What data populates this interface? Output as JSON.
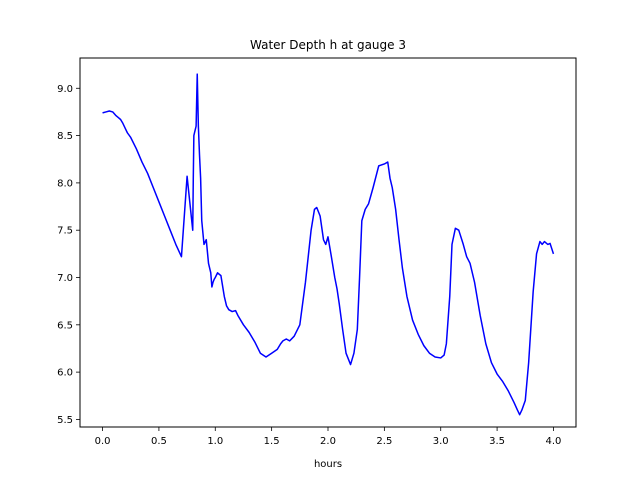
{
  "chart_data": {
    "type": "line",
    "title": "Water Depth h at gauge 3",
    "xlabel": "hours",
    "ylabel": "",
    "xlim": [
      -0.2,
      4.2
    ],
    "ylim": [
      5.42,
      9.32
    ],
    "xticks": [
      0.0,
      0.5,
      1.0,
      1.5,
      2.0,
      2.5,
      3.0,
      3.5,
      4.0
    ],
    "xtick_labels": [
      "0.0",
      "0.5",
      "1.0",
      "1.5",
      "2.0",
      "2.5",
      "3.0",
      "3.5",
      "4.0"
    ],
    "yticks": [
      5.5,
      6.0,
      6.5,
      7.0,
      7.5,
      8.0,
      8.5,
      9.0
    ],
    "ytick_labels": [
      "5.5",
      "6.0",
      "6.5",
      "7.0",
      "7.5",
      "8.0",
      "8.5",
      "9.0"
    ],
    "grid": false,
    "series": [
      {
        "color": "#0000ff",
        "x": [
          0.0,
          0.03,
          0.06,
          0.09,
          0.12,
          0.14,
          0.16,
          0.18,
          0.2,
          0.22,
          0.25,
          0.3,
          0.35,
          0.4,
          0.45,
          0.5,
          0.55,
          0.6,
          0.65,
          0.7,
          0.75,
          0.8,
          0.805,
          0.81,
          0.82,
          0.83,
          0.84,
          0.85,
          0.86,
          0.87,
          0.88,
          0.9,
          0.92,
          0.94,
          0.95,
          0.96,
          0.97,
          0.98,
          0.99,
          1.0,
          1.02,
          1.05,
          1.08,
          1.1,
          1.12,
          1.15,
          1.18,
          1.2,
          1.25,
          1.3,
          1.35,
          1.4,
          1.45,
          1.5,
          1.55,
          1.58,
          1.6,
          1.63,
          1.66,
          1.7,
          1.75,
          1.8,
          1.85,
          1.88,
          1.9,
          1.93,
          1.96,
          1.98,
          2.0,
          2.03,
          2.06,
          2.08,
          2.1,
          2.13,
          2.16,
          2.2,
          2.23,
          2.26,
          2.28,
          2.3,
          2.33,
          2.36,
          2.4,
          2.45,
          2.5,
          2.53,
          2.55,
          2.57,
          2.6,
          2.63,
          2.66,
          2.7,
          2.75,
          2.8,
          2.85,
          2.9,
          2.95,
          3.0,
          3.03,
          3.05,
          3.08,
          3.1,
          3.13,
          3.16,
          3.2,
          3.23,
          3.26,
          3.3,
          3.35,
          3.4,
          3.45,
          3.5,
          3.55,
          3.6,
          3.65,
          3.68,
          3.7,
          3.72,
          3.75,
          3.78,
          3.82,
          3.85,
          3.88,
          3.9,
          3.92,
          3.95,
          3.97,
          4.0
        ],
        "y": [
          8.74,
          8.75,
          8.76,
          8.75,
          8.71,
          8.69,
          8.67,
          8.63,
          8.58,
          8.53,
          8.48,
          8.36,
          8.22,
          8.1,
          7.95,
          7.8,
          7.65,
          7.5,
          7.35,
          7.22,
          8.07,
          7.5,
          8.05,
          8.5,
          8.55,
          8.6,
          9.15,
          8.6,
          8.3,
          8.05,
          7.6,
          7.35,
          7.4,
          7.15,
          7.1,
          7.05,
          6.9,
          6.95,
          6.98,
          7.0,
          7.05,
          7.02,
          6.8,
          6.7,
          6.66,
          6.64,
          6.65,
          6.6,
          6.5,
          6.42,
          6.32,
          6.2,
          6.16,
          6.2,
          6.24,
          6.3,
          6.33,
          6.35,
          6.33,
          6.38,
          6.5,
          6.95,
          7.5,
          7.72,
          7.74,
          7.65,
          7.4,
          7.35,
          7.43,
          7.22,
          7.0,
          6.88,
          6.72,
          6.45,
          6.2,
          6.08,
          6.2,
          6.45,
          7.0,
          7.6,
          7.72,
          7.78,
          7.95,
          8.18,
          8.2,
          8.22,
          8.05,
          7.95,
          7.72,
          7.4,
          7.1,
          6.8,
          6.55,
          6.4,
          6.28,
          6.2,
          6.16,
          6.15,
          6.18,
          6.3,
          6.8,
          7.35,
          7.52,
          7.5,
          7.35,
          7.22,
          7.15,
          6.95,
          6.6,
          6.3,
          6.1,
          5.98,
          5.9,
          5.8,
          5.68,
          5.6,
          5.55,
          5.6,
          5.7,
          6.1,
          6.85,
          7.25,
          7.38,
          7.35,
          7.38,
          7.35,
          7.36,
          7.25
        ]
      }
    ]
  }
}
